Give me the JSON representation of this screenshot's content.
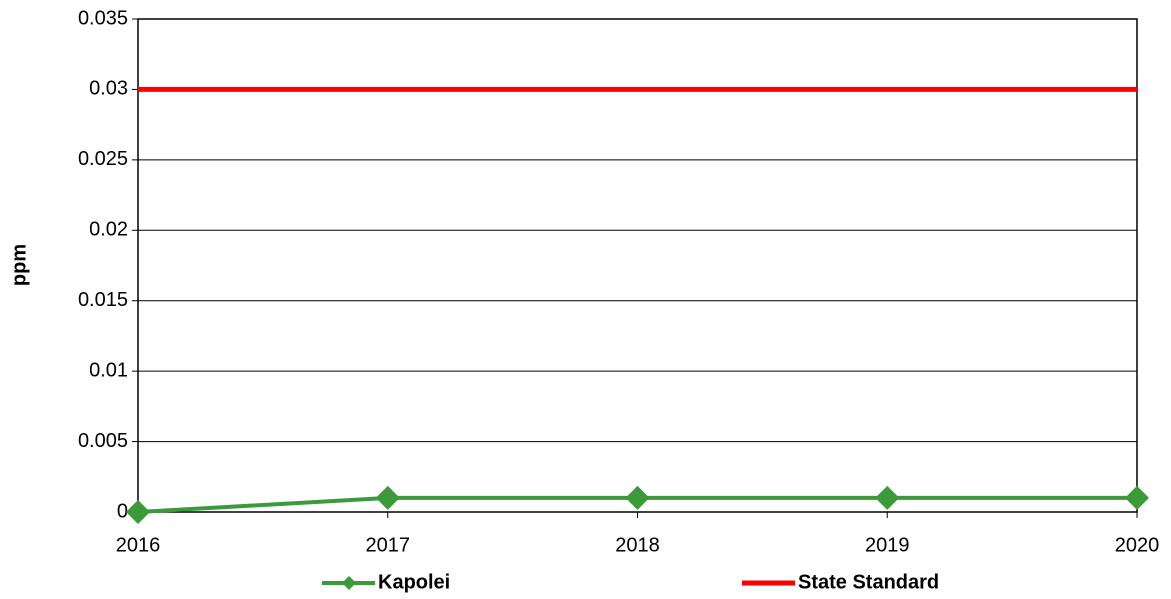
{
  "chart_data": {
    "type": "line",
    "y_label": "ppm",
    "x": [
      2016,
      2017,
      2018,
      2019,
      2020
    ],
    "xlim": [
      2016,
      2020
    ],
    "xticks": [
      2016,
      2017,
      2018,
      2019,
      2020
    ],
    "ylim": [
      0,
      0.035
    ],
    "yticks": [
      0,
      0.005,
      0.01,
      0.015,
      0.02,
      0.025,
      0.03,
      0.035
    ],
    "grid": true,
    "legend": "bottom",
    "series": [
      {
        "name": "Kapolei",
        "color": "#3c9a3a",
        "marker": "diamond",
        "values": [
          0,
          0.001,
          0.001,
          0.001,
          0.001
        ]
      },
      {
        "name": "State Standard",
        "color": "#ff0000",
        "values": [
          0.03,
          0.03,
          0.03,
          0.03,
          0.03
        ]
      }
    ]
  }
}
